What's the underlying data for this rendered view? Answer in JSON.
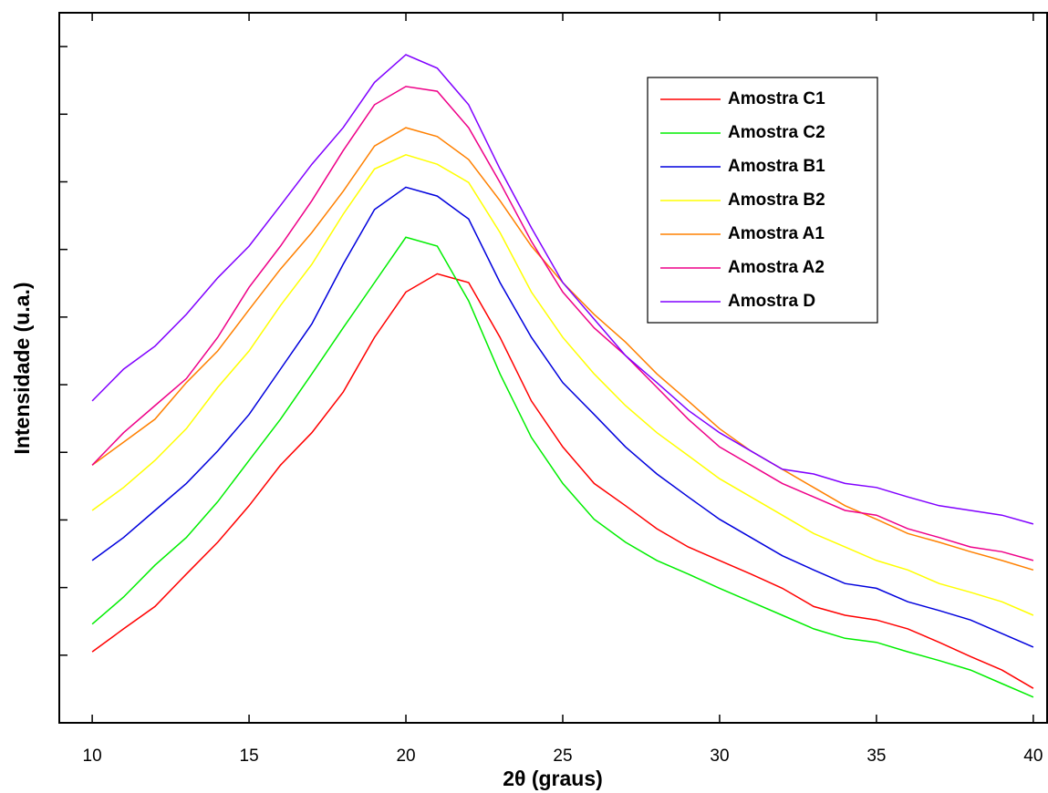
{
  "chart_data": {
    "type": "line",
    "xlabel": "2θ (graus)",
    "ylabel": "Intensidade (u.a.)",
    "x": [
      10,
      11,
      12,
      13,
      14,
      15,
      16,
      17,
      18,
      19,
      20,
      21,
      22,
      23,
      24,
      25,
      26,
      27,
      28,
      29,
      30,
      31,
      32,
      33,
      34,
      35,
      36,
      37,
      38,
      39,
      40
    ],
    "xlim": [
      8.95,
      40.44
    ],
    "xticks": [
      10,
      15,
      20,
      25,
      30,
      35,
      40
    ],
    "ylim": [
      0,
      10.5
    ],
    "yticks": [
      1,
      2,
      3,
      4,
      5,
      6,
      7,
      8,
      9,
      10
    ],
    "legend": "upper right",
    "series": [
      {
        "name": "Amostra C1",
        "color": "#ff0000",
        "values": [
          1.05,
          1.39,
          1.72,
          2.2,
          2.67,
          3.21,
          3.81,
          4.29,
          4.89,
          5.7,
          6.37,
          6.64,
          6.51,
          5.7,
          4.76,
          4.08,
          3.54,
          3.21,
          2.87,
          2.6,
          2.4,
          2.2,
          1.99,
          1.72,
          1.59,
          1.52,
          1.39,
          1.19,
          0.98,
          0.78,
          0.51
        ]
      },
      {
        "name": "Amostra C2",
        "color": "#00ee00",
        "values": [
          1.46,
          1.86,
          2.33,
          2.74,
          3.27,
          3.88,
          4.49,
          5.16,
          5.84,
          6.51,
          7.18,
          7.05,
          6.24,
          5.16,
          4.22,
          3.54,
          3.01,
          2.67,
          2.4,
          2.2,
          1.99,
          1.79,
          1.59,
          1.39,
          1.25,
          1.19,
          1.05,
          0.92,
          0.78,
          0.58,
          0.38
        ]
      },
      {
        "name": "Amostra B1",
        "color": "#0000dd",
        "values": [
          2.4,
          2.74,
          3.14,
          3.54,
          4.02,
          4.56,
          5.23,
          5.9,
          6.78,
          7.59,
          7.92,
          7.79,
          7.45,
          6.51,
          5.7,
          5.03,
          4.56,
          4.08,
          3.68,
          3.34,
          3.01,
          2.74,
          2.47,
          2.26,
          2.06,
          1.99,
          1.79,
          1.66,
          1.52,
          1.32,
          1.12
        ]
      },
      {
        "name": "Amostra B2",
        "color": "#ffff00",
        "values": [
          3.14,
          3.48,
          3.88,
          4.35,
          4.96,
          5.5,
          6.17,
          6.78,
          7.52,
          8.19,
          8.4,
          8.26,
          7.99,
          7.25,
          6.37,
          5.7,
          5.16,
          4.69,
          4.29,
          3.95,
          3.61,
          3.34,
          3.07,
          2.8,
          2.6,
          2.4,
          2.26,
          2.06,
          1.93,
          1.79,
          1.59
        ]
      },
      {
        "name": "Amostra A1",
        "color": "#ff8000",
        "values": [
          3.81,
          4.15,
          4.49,
          5.03,
          5.5,
          6.11,
          6.71,
          7.25,
          7.86,
          8.53,
          8.8,
          8.67,
          8.33,
          7.72,
          7.05,
          6.51,
          6.04,
          5.63,
          5.16,
          4.76,
          4.35,
          4.02,
          3.75,
          3.48,
          3.21,
          3.01,
          2.8,
          2.67,
          2.53,
          2.4,
          2.26
        ]
      },
      {
        "name": "Amostra A2",
        "color": "#ee0088",
        "values": [
          3.81,
          4.29,
          4.69,
          5.09,
          5.7,
          6.44,
          7.05,
          7.72,
          8.46,
          9.14,
          9.41,
          9.34,
          8.8,
          7.99,
          7.12,
          6.37,
          5.84,
          5.43,
          4.96,
          4.49,
          4.08,
          3.81,
          3.54,
          3.34,
          3.14,
          3.07,
          2.87,
          2.74,
          2.6,
          2.53,
          2.4
        ]
      },
      {
        "name": "Amostra D",
        "color": "#8000ff",
        "values": [
          4.76,
          5.23,
          5.57,
          6.04,
          6.58,
          7.05,
          7.65,
          8.26,
          8.8,
          9.47,
          9.88,
          9.68,
          9.14,
          8.19,
          7.32,
          6.51,
          5.97,
          5.43,
          5.03,
          4.62,
          4.29,
          4.02,
          3.75,
          3.68,
          3.54,
          3.48,
          3.34,
          3.21,
          3.14,
          3.07,
          2.94
        ]
      }
    ]
  }
}
